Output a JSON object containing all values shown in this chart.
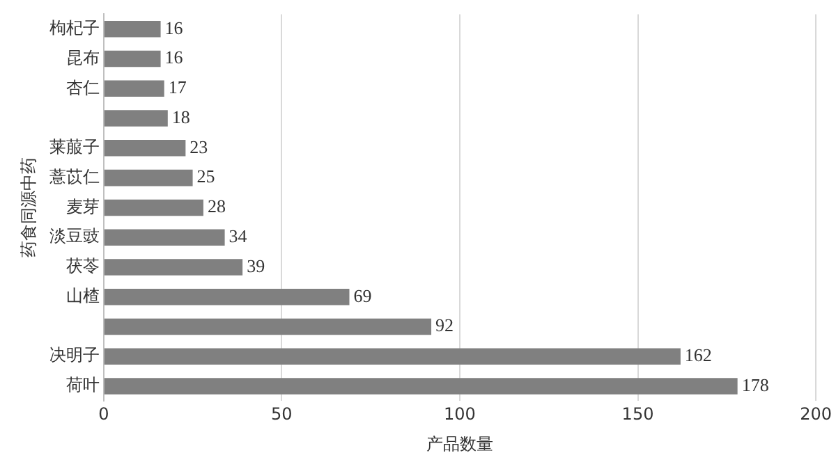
{
  "chart_data": {
    "type": "bar",
    "orientation": "horizontal",
    "xlabel": "产品数量",
    "ylabel": "药食同源中药",
    "categories": [
      "枸杞子",
      "昆布",
      "杏仁",
      null,
      "莱菔子",
      "薏苡仁",
      "麦芽",
      "淡豆豉",
      "茯苓",
      "山楂",
      null,
      "决明子",
      "荷叶"
    ],
    "values": [
      16,
      16,
      17,
      18,
      23,
      25,
      28,
      34,
      39,
      69,
      92,
      162,
      178
    ],
    "color": "#808080",
    "xlim": [
      0,
      200
    ],
    "xticks": [
      0,
      50,
      100,
      150,
      200
    ],
    "grid": "x",
    "data_labels": true
  }
}
